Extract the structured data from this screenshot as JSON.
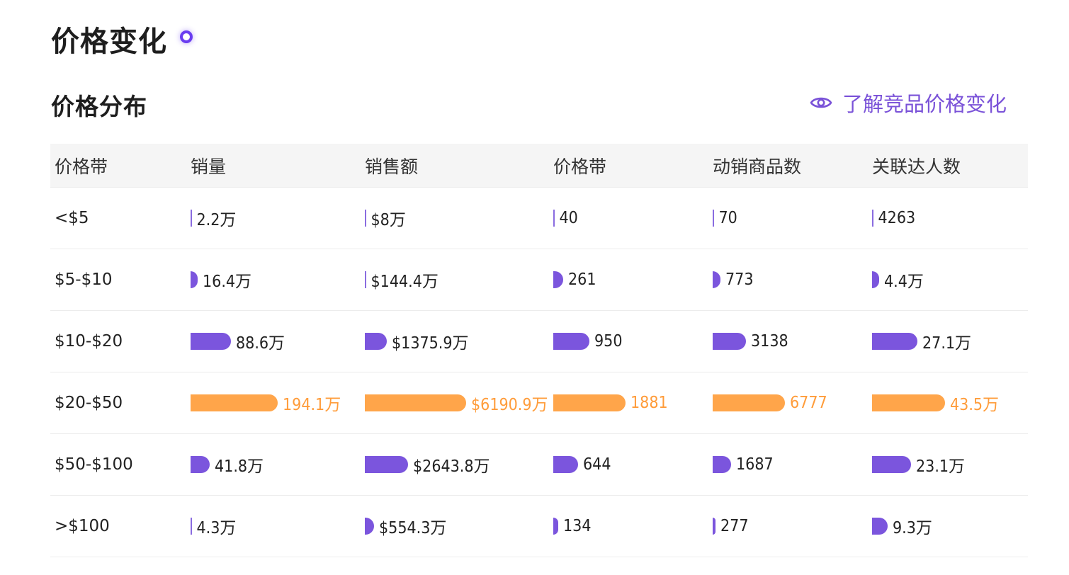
{
  "title": "价格变化",
  "section_title": "价格分布",
  "learn_link": "了解竞品价格变化",
  "colors": {
    "bar": "#7b55dd",
    "highlight": "#ffa54a",
    "accent": "#7a52d8"
  },
  "columns": [
    "价格带",
    "销量",
    "销售额",
    "价格带",
    "动销商品数",
    "关联达人数"
  ],
  "rows": [
    {
      "range": "<$5",
      "highlight": false,
      "cells": [
        {
          "text": "2.2万",
          "fraction": 0.0
        },
        {
          "text": "$8万",
          "fraction": 0.0
        },
        {
          "text": "40",
          "fraction": 0.0
        },
        {
          "text": "70",
          "fraction": 0.0
        },
        {
          "text": "4263",
          "fraction": 0.0
        }
      ]
    },
    {
      "range": "$5-$10",
      "highlight": false,
      "cells": [
        {
          "text": "16.4万",
          "fraction": 0.08
        },
        {
          "text": "$144.4万",
          "fraction": 0.02
        },
        {
          "text": "261",
          "fraction": 0.14
        },
        {
          "text": "773",
          "fraction": 0.11
        },
        {
          "text": "4.4万",
          "fraction": 0.1
        }
      ]
    },
    {
      "range": "$10-$20",
      "highlight": false,
      "cells": [
        {
          "text": "88.6万",
          "fraction": 0.46
        },
        {
          "text": "$1375.9万",
          "fraction": 0.22
        },
        {
          "text": "950",
          "fraction": 0.5
        },
        {
          "text": "3138",
          "fraction": 0.46
        },
        {
          "text": "27.1万",
          "fraction": 0.62
        }
      ]
    },
    {
      "range": "$20-$50",
      "highlight": true,
      "cells": [
        {
          "text": "194.1万",
          "fraction": 1.0
        },
        {
          "text": "$6190.9万",
          "fraction": 1.0
        },
        {
          "text": "1881",
          "fraction": 1.0
        },
        {
          "text": "6777",
          "fraction": 1.0
        },
        {
          "text": "43.5万",
          "fraction": 1.0
        }
      ]
    },
    {
      "range": "$50-$100",
      "highlight": false,
      "cells": [
        {
          "text": "41.8万",
          "fraction": 0.22
        },
        {
          "text": "$2643.8万",
          "fraction": 0.43
        },
        {
          "text": "644",
          "fraction": 0.34
        },
        {
          "text": "1687",
          "fraction": 0.25
        },
        {
          "text": "23.1万",
          "fraction": 0.53
        }
      ]
    },
    {
      "range": ">$100",
      "highlight": false,
      "cells": [
        {
          "text": "4.3万",
          "fraction": 0.02
        },
        {
          "text": "$554.3万",
          "fraction": 0.09
        },
        {
          "text": "134",
          "fraction": 0.07
        },
        {
          "text": "277",
          "fraction": 0.04
        },
        {
          "text": "9.3万",
          "fraction": 0.21
        }
      ]
    }
  ]
}
